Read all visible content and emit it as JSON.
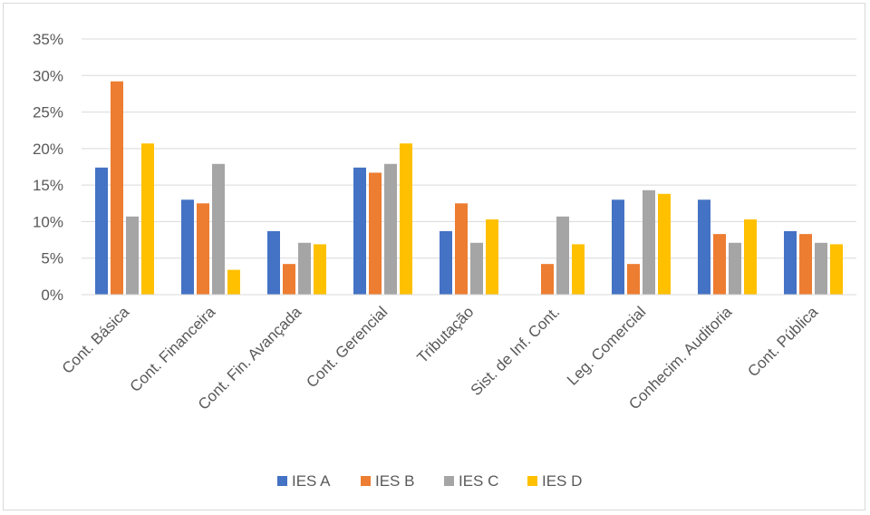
{
  "chart_data": {
    "type": "bar",
    "categories": [
      "Cont. Básica",
      "Cont. Financeira",
      "Cont. Fin. Avançada",
      "Cont. Gerencial",
      "Tributação",
      "Sist. de Inf. Cont.",
      "Leg. Comercial",
      "Conhecim. Auditoria",
      "Cont. Pública"
    ],
    "series": [
      {
        "name": "IES A",
        "color": "#4472c4",
        "values": [
          17.4,
          13.0,
          8.7,
          17.4,
          8.7,
          0,
          13.0,
          13.0,
          8.7
        ]
      },
      {
        "name": "IES B",
        "color": "#ed7d31",
        "values": [
          29.2,
          12.5,
          4.2,
          16.7,
          12.5,
          4.2,
          4.2,
          8.3,
          8.3
        ]
      },
      {
        "name": "IES C",
        "color": "#a5a5a5",
        "values": [
          10.7,
          17.9,
          7.1,
          17.9,
          7.1,
          10.7,
          14.3,
          7.1,
          7.1
        ]
      },
      {
        "name": "IES D",
        "color": "#ffc000",
        "values": [
          20.7,
          3.4,
          6.9,
          20.7,
          10.3,
          6.9,
          13.8,
          10.3,
          6.9
        ]
      }
    ],
    "ylim": [
      0,
      35
    ],
    "yticks": [
      "0%",
      "5%",
      "10%",
      "15%",
      "20%",
      "25%",
      "30%",
      "35%"
    ],
    "grid": true,
    "legend_position": "bottom",
    "title": "",
    "xlabel": "",
    "ylabel": ""
  }
}
